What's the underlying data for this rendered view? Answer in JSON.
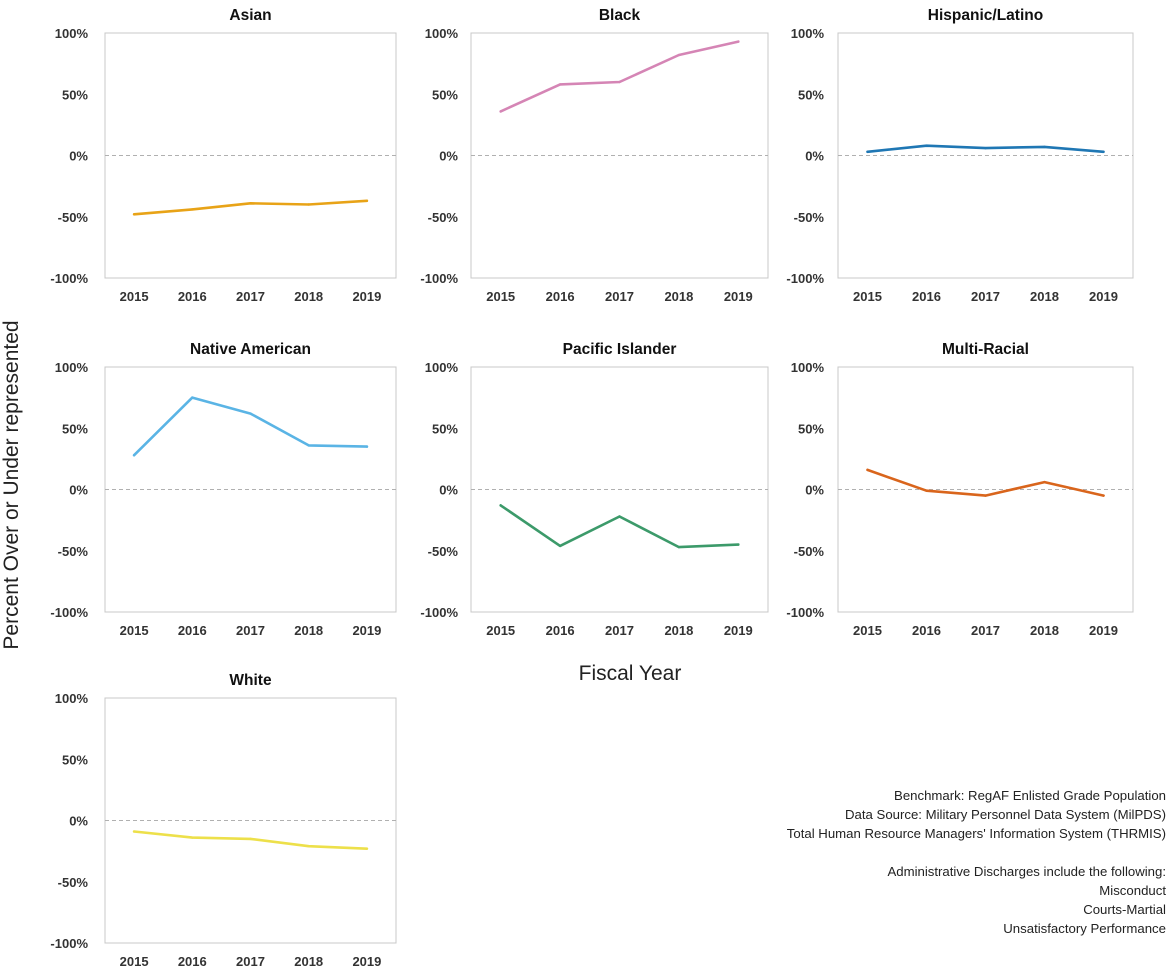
{
  "chart_data": [
    {
      "type": "line",
      "title": "Asian",
      "color": "#e8a317",
      "x": [
        "2015",
        "2016",
        "2017",
        "2018",
        "2019"
      ],
      "values": [
        -48,
        -44,
        -39,
        -40,
        -37
      ],
      "ylim": [
        -100,
        100
      ],
      "yticks": [
        "100%",
        "50%",
        "0%",
        "-50%",
        "-100%"
      ]
    },
    {
      "type": "line",
      "title": "Black",
      "color": "#d585b5",
      "x": [
        "2015",
        "2016",
        "2017",
        "2018",
        "2019"
      ],
      "values": [
        36,
        58,
        60,
        82,
        93
      ],
      "ylim": [
        -100,
        100
      ],
      "yticks": [
        "100%",
        "50%",
        "0%",
        "-50%",
        "-100%"
      ]
    },
    {
      "type": "line",
      "title": "Hispanic/Latino",
      "color": "#1f77b4",
      "x": [
        "2015",
        "2016",
        "2017",
        "2018",
        "2019"
      ],
      "values": [
        3,
        8,
        6,
        7,
        3
      ],
      "ylim": [
        -100,
        100
      ],
      "yticks": [
        "100%",
        "50%",
        "0%",
        "-50%",
        "-100%"
      ]
    },
    {
      "type": "line",
      "title": "Native American",
      "color": "#5ab4e5",
      "x": [
        "2015",
        "2016",
        "2017",
        "2018",
        "2019"
      ],
      "values": [
        28,
        75,
        62,
        36,
        35
      ],
      "ylim": [
        -100,
        100
      ],
      "yticks": [
        "100%",
        "50%",
        "0%",
        "-50%",
        "-100%"
      ]
    },
    {
      "type": "line",
      "title": "Pacific Islander",
      "color": "#3c9a6a",
      "x": [
        "2015",
        "2016",
        "2017",
        "2018",
        "2019"
      ],
      "values": [
        -13,
        -46,
        -22,
        -47,
        -45
      ],
      "ylim": [
        -100,
        100
      ],
      "yticks": [
        "100%",
        "50%",
        "0%",
        "-50%",
        "-100%"
      ]
    },
    {
      "type": "line",
      "title": "Multi-Racial",
      "color": "#d9651c",
      "x": [
        "2015",
        "2016",
        "2017",
        "2018",
        "2019"
      ],
      "values": [
        16,
        -1,
        -5,
        6,
        -5
      ],
      "ylim": [
        -100,
        100
      ],
      "yticks": [
        "100%",
        "50%",
        "0%",
        "-50%",
        "-100%"
      ]
    },
    {
      "type": "line",
      "title": "White",
      "color": "#ede04a",
      "x": [
        "2015",
        "2016",
        "2017",
        "2018",
        "2019"
      ],
      "values": [
        -9,
        -14,
        -15,
        -21,
        -23
      ],
      "ylim": [
        -100,
        100
      ],
      "yticks": [
        "100%",
        "50%",
        "0%",
        "-50%",
        "-100%"
      ]
    }
  ],
  "axis": {
    "ylabel": "Percent Over or Under represented",
    "xlabel": "Fiscal Year"
  },
  "notes": {
    "benchmark": "Benchmark: RegAF Enlisted Grade Population",
    "source1": "Data Source: Military Personnel Data System (MilPDS)",
    "source2": "Total Human Resource Managers' Information System (THRMIS)",
    "discharges_header": "Administrative Discharges include the following:",
    "item1": "Misconduct",
    "item2": "Courts-Martial",
    "item3": "Unsatisfactory Performance"
  }
}
